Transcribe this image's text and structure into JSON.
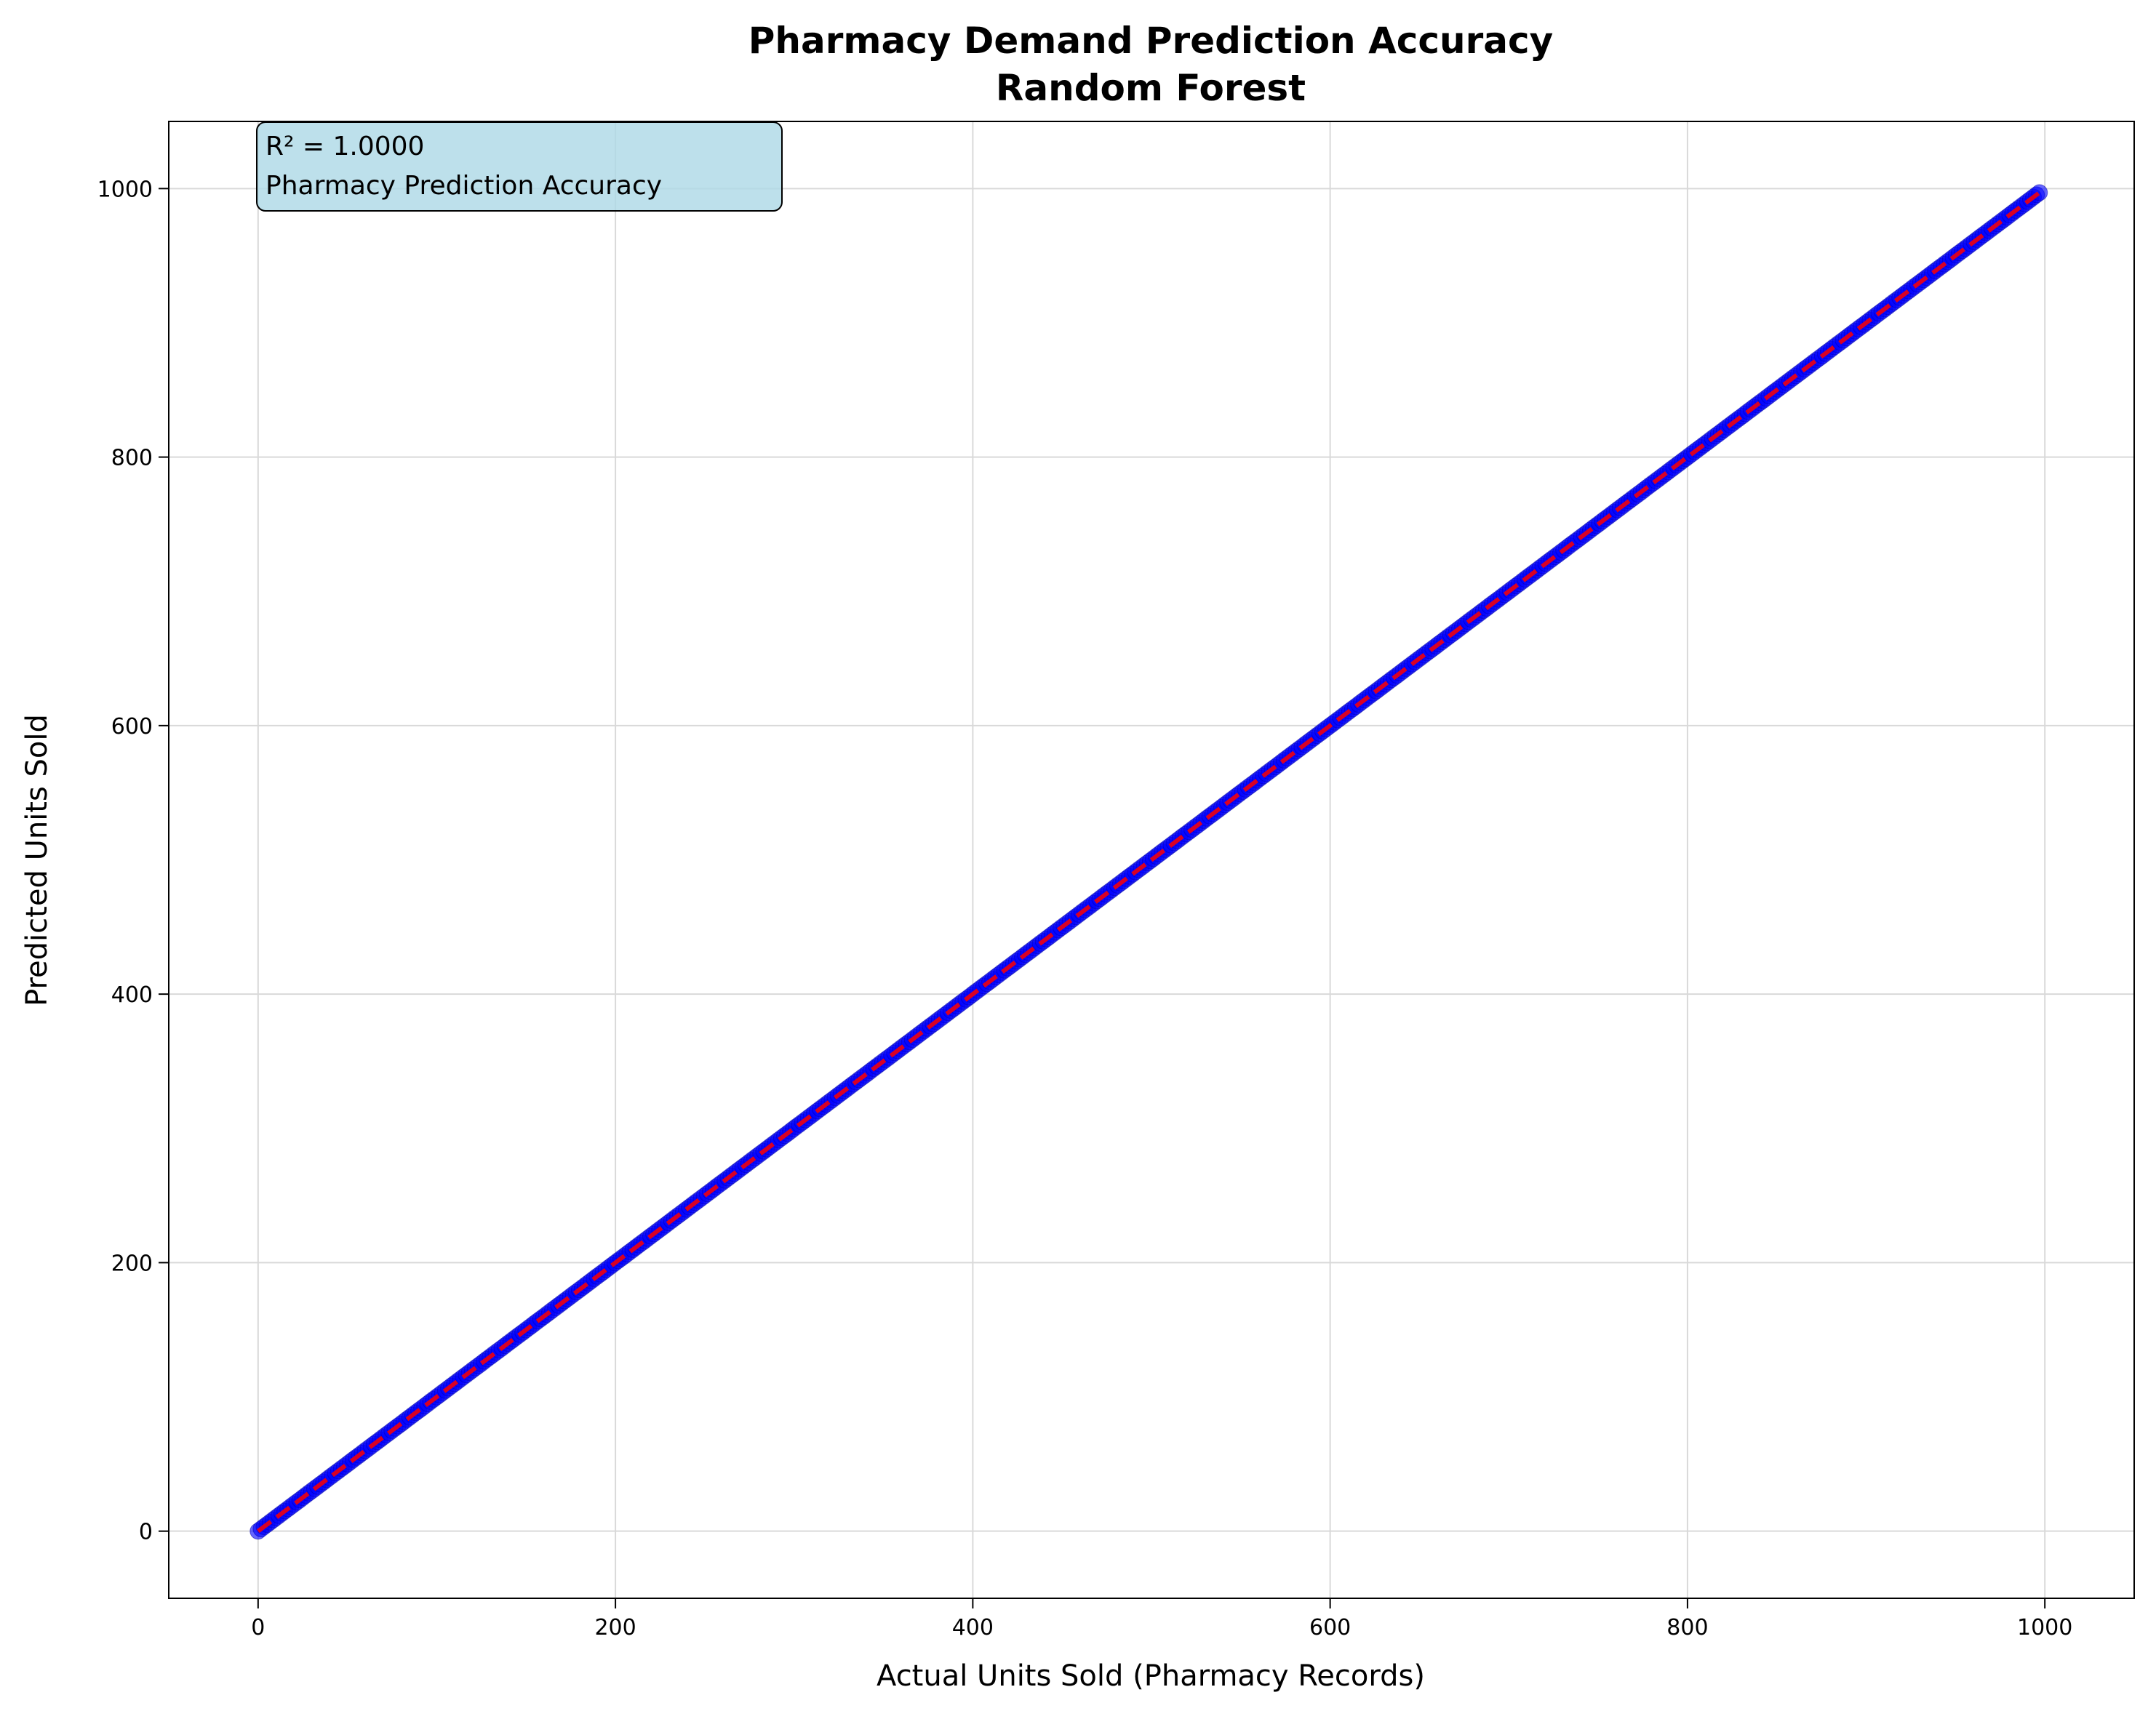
{
  "chart_data": {
    "type": "scatter",
    "title": "Pharmacy Demand Prediction Accuracy",
    "subtitle": "Random Forest",
    "xlabel": "Actual Units Sold (Pharmacy Records)",
    "ylabel": "Predicted Units Sold",
    "xlim": [
      -50,
      1050
    ],
    "ylim": [
      -50,
      1050
    ],
    "xticks": [
      0,
      200,
      400,
      600,
      800,
      1000
    ],
    "yticks": [
      0,
      200,
      400,
      600,
      800,
      1000
    ],
    "grid": true,
    "points": {
      "x_start": 0,
      "x_end": 997,
      "count": 600,
      "relation": "y equals x"
    },
    "reference_line": {
      "x": [
        0,
        997
      ],
      "y": [
        0,
        997
      ],
      "style": "dashed"
    },
    "annotation": {
      "line1": "R² = 1.0000",
      "line2": "Pharmacy Prediction Accuracy",
      "placement": "top-left"
    },
    "colors": {
      "points": "#0000ff",
      "reference_line": "#ff0000",
      "annotation_box": "#add8e6",
      "grid": "#d9d9d9"
    }
  }
}
